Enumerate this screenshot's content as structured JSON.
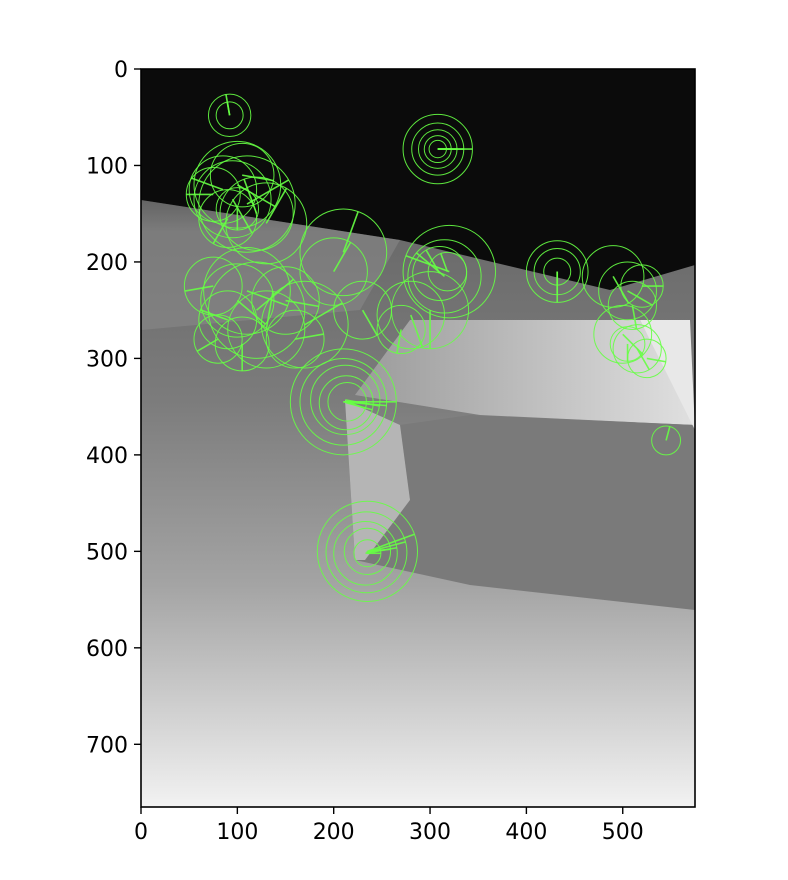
{
  "chart_data": {
    "type": "scatter",
    "title": "",
    "xlabel": "",
    "ylabel": "",
    "xlim": [
      0,
      575
    ],
    "ylim": [
      765,
      0
    ],
    "y_inverted": true,
    "grid": false,
    "legend": "none",
    "background": "grayscale depth image",
    "marker": "circle with orientation line",
    "marker_color": "#66ff44",
    "x_ticks": [
      "0",
      "100",
      "200",
      "300",
      "400",
      "500"
    ],
    "y_ticks": [
      "0",
      "100",
      "200",
      "300",
      "400",
      "500",
      "600",
      "700"
    ],
    "x_tick_values": [
      0,
      100,
      200,
      300,
      400,
      500
    ],
    "y_tick_values": [
      0,
      100,
      200,
      300,
      400,
      500,
      600,
      700
    ],
    "keypoints": [
      {
        "x": 92,
        "y": 48,
        "r": 22,
        "angle": -100
      },
      {
        "x": 92,
        "y": 48,
        "r": 14,
        "angle": -100
      },
      {
        "x": 308,
        "y": 83,
        "r": 36,
        "angle": 0
      },
      {
        "x": 308,
        "y": 83,
        "r": 27,
        "angle": 0
      },
      {
        "x": 308,
        "y": 83,
        "r": 20,
        "angle": 0
      },
      {
        "x": 308,
        "y": 83,
        "r": 14,
        "angle": 0
      },
      {
        "x": 308,
        "y": 83,
        "r": 9,
        "angle": 0
      },
      {
        "x": 100,
        "y": 120,
        "r": 45,
        "angle": 30
      },
      {
        "x": 95,
        "y": 135,
        "r": 40,
        "angle": 60
      },
      {
        "x": 85,
        "y": 125,
        "r": 35,
        "angle": 200
      },
      {
        "x": 110,
        "y": 140,
        "r": 50,
        "angle": 330
      },
      {
        "x": 120,
        "y": 150,
        "r": 38,
        "angle": 250
      },
      {
        "x": 90,
        "y": 155,
        "r": 30,
        "angle": 120
      },
      {
        "x": 75,
        "y": 130,
        "r": 28,
        "angle": 180
      },
      {
        "x": 105,
        "y": 110,
        "r": 33,
        "angle": 10
      },
      {
        "x": 130,
        "y": 160,
        "r": 42,
        "angle": 300
      },
      {
        "x": 100,
        "y": 145,
        "r": 22,
        "angle": 90
      },
      {
        "x": 210,
        "y": 190,
        "r": 45,
        "angle": -70
      },
      {
        "x": 200,
        "y": 210,
        "r": 35,
        "angle": -60
      },
      {
        "x": 320,
        "y": 210,
        "r": 48,
        "angle": 200
      },
      {
        "x": 315,
        "y": 215,
        "r": 38,
        "angle": 220
      },
      {
        "x": 310,
        "y": 212,
        "r": 28,
        "angle": 240
      },
      {
        "x": 318,
        "y": 210,
        "r": 20,
        "angle": 250
      },
      {
        "x": 300,
        "y": 250,
        "r": 40,
        "angle": 90
      },
      {
        "x": 280,
        "y": 255,
        "r": 35,
        "angle": 70
      },
      {
        "x": 270,
        "y": 270,
        "r": 25,
        "angle": 100
      },
      {
        "x": 230,
        "y": 250,
        "r": 30,
        "angle": 60
      },
      {
        "x": 110,
        "y": 230,
        "r": 45,
        "angle": 20
      },
      {
        "x": 100,
        "y": 240,
        "r": 38,
        "angle": 40
      },
      {
        "x": 90,
        "y": 260,
        "r": 30,
        "angle": 200
      },
      {
        "x": 120,
        "y": 250,
        "r": 50,
        "angle": 320
      },
      {
        "x": 130,
        "y": 270,
        "r": 40,
        "angle": 280
      },
      {
        "x": 150,
        "y": 240,
        "r": 35,
        "angle": 10
      },
      {
        "x": 170,
        "y": 265,
        "r": 45,
        "angle": 330
      },
      {
        "x": 160,
        "y": 280,
        "r": 30,
        "angle": 350
      },
      {
        "x": 80,
        "y": 280,
        "r": 25,
        "angle": 150
      },
      {
        "x": 105,
        "y": 285,
        "r": 28,
        "angle": 90
      },
      {
        "x": 75,
        "y": 225,
        "r": 30,
        "angle": 170
      },
      {
        "x": 210,
        "y": 345,
        "r": 55,
        "angle": 0
      },
      {
        "x": 210,
        "y": 345,
        "r": 45,
        "angle": 5
      },
      {
        "x": 212,
        "y": 343,
        "r": 36,
        "angle": 10
      },
      {
        "x": 213,
        "y": 346,
        "r": 28,
        "angle": 15
      },
      {
        "x": 214,
        "y": 345,
        "r": 20,
        "angle": 20
      },
      {
        "x": 235,
        "y": 500,
        "r": 52,
        "angle": -20
      },
      {
        "x": 234,
        "y": 501,
        "r": 42,
        "angle": -15
      },
      {
        "x": 233,
        "y": 502,
        "r": 33,
        "angle": -10
      },
      {
        "x": 235,
        "y": 500,
        "r": 24,
        "angle": -5
      },
      {
        "x": 235,
        "y": 502,
        "r": 14,
        "angle": 0
      },
      {
        "x": 432,
        "y": 210,
        "r": 32,
        "angle": 90
      },
      {
        "x": 432,
        "y": 210,
        "r": 24,
        "angle": 90
      },
      {
        "x": 432,
        "y": 210,
        "r": 14,
        "angle": 90
      },
      {
        "x": 490,
        "y": 215,
        "r": 32,
        "angle": 60
      },
      {
        "x": 505,
        "y": 230,
        "r": 30,
        "angle": 30
      },
      {
        "x": 510,
        "y": 245,
        "r": 25,
        "angle": 80
      },
      {
        "x": 520,
        "y": 225,
        "r": 22,
        "angle": 0
      },
      {
        "x": 500,
        "y": 275,
        "r": 30,
        "angle": 45
      },
      {
        "x": 515,
        "y": 290,
        "r": 25,
        "angle": 60
      },
      {
        "x": 525,
        "y": 300,
        "r": 20,
        "angle": 10
      },
      {
        "x": 505,
        "y": 285,
        "r": 18,
        "angle": 90
      },
      {
        "x": 545,
        "y": 385,
        "r": 15,
        "angle": -75
      }
    ]
  }
}
